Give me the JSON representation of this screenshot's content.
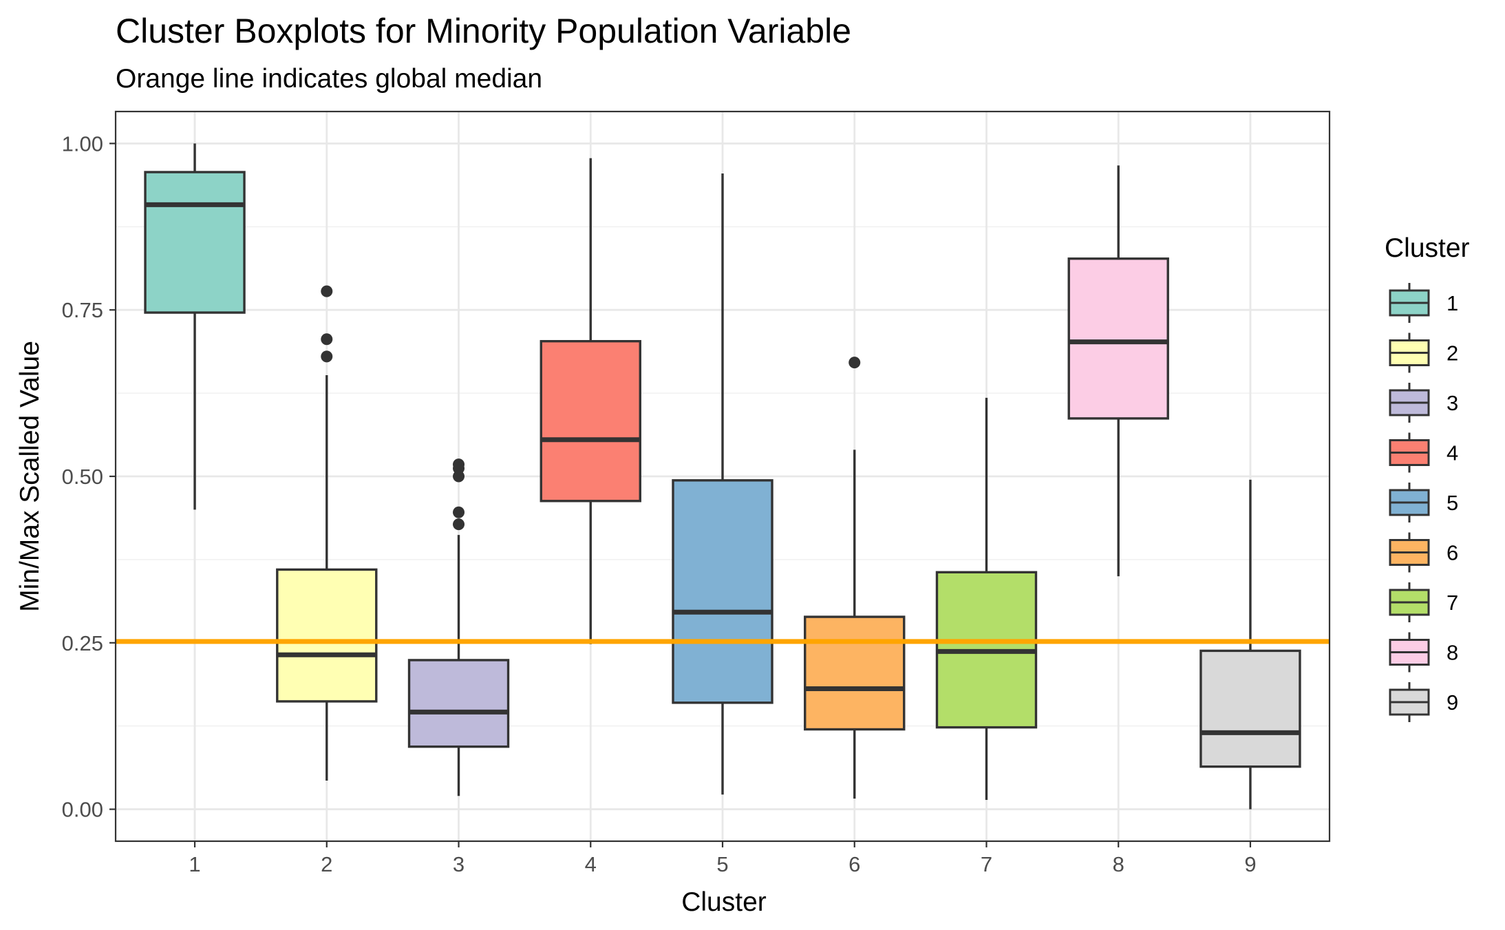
{
  "chart_data": {
    "type": "boxplot",
    "title": "Cluster Boxplots for Minority Population Variable",
    "subtitle": "Orange line indicates global median",
    "xlabel": "Cluster",
    "ylabel": "Min/Max Scalled Value",
    "ylim": [
      -0.048,
      1.048
    ],
    "yticks": [
      0.0,
      0.25,
      0.5,
      0.75,
      1.0
    ],
    "ytick_labels": [
      "0.00",
      "0.25",
      "0.50",
      "0.75",
      "1.00"
    ],
    "global_median": 0.252,
    "global_median_color": "#ffa500",
    "grid": true,
    "legend": {
      "title": "Cluster",
      "position": "right"
    },
    "boxes": [
      {
        "cluster": "1",
        "color": "#8dd3c7",
        "min": 0.45,
        "q1": 0.746,
        "median": 0.908,
        "q3": 0.957,
        "max": 1.0,
        "outliers": []
      },
      {
        "cluster": "2",
        "color": "#ffffb3",
        "min": 0.043,
        "q1": 0.162,
        "median": 0.232,
        "q3": 0.36,
        "max": 0.652,
        "outliers": [
          0.778,
          0.706,
          0.68
        ]
      },
      {
        "cluster": "3",
        "color": "#bebada",
        "min": 0.02,
        "q1": 0.094,
        "median": 0.146,
        "q3": 0.224,
        "max": 0.412,
        "outliers": [
          0.518,
          0.512,
          0.5,
          0.446,
          0.428
        ]
      },
      {
        "cluster": "4",
        "color": "#fb8072",
        "min": 0.248,
        "q1": 0.463,
        "median": 0.555,
        "q3": 0.703,
        "max": 0.978,
        "outliers": []
      },
      {
        "cluster": "5",
        "color": "#80b1d3",
        "min": 0.022,
        "q1": 0.16,
        "median": 0.296,
        "q3": 0.494,
        "max": 0.955,
        "outliers": []
      },
      {
        "cluster": "6",
        "color": "#fdb462",
        "min": 0.016,
        "q1": 0.12,
        "median": 0.181,
        "q3": 0.289,
        "max": 0.54,
        "outliers": [
          0.671
        ]
      },
      {
        "cluster": "7",
        "color": "#b3de69",
        "min": 0.014,
        "q1": 0.123,
        "median": 0.237,
        "q3": 0.356,
        "max": 0.618,
        "outliers": []
      },
      {
        "cluster": "8",
        "color": "#fccde5",
        "min": 0.35,
        "q1": 0.587,
        "median": 0.702,
        "q3": 0.827,
        "max": 0.967,
        "outliers": []
      },
      {
        "cluster": "9",
        "color": "#d9d9d9",
        "min": 0.0,
        "q1": 0.064,
        "median": 0.115,
        "q3": 0.238,
        "max": 0.495,
        "outliers": []
      }
    ]
  }
}
